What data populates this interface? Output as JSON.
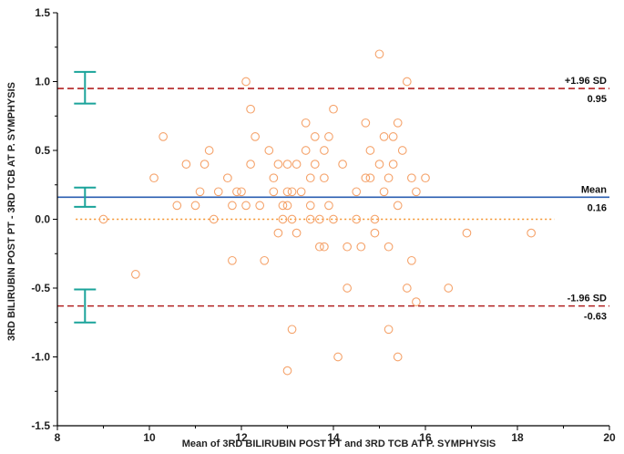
{
  "chart_data": {
    "type": "scatter",
    "title": "",
    "xlabel": "Mean of 3RD BILIRUBIN POST PT and 3RD TCB AT P. SYMPHYSIS",
    "ylabel": "3RD BILIRUBIN POST PT - 3RD TCB AT P. SYMPHYSIS",
    "xlim": [
      8,
      20
    ],
    "ylim": [
      -1.5,
      1.5
    ],
    "x_ticks": [
      "8",
      "10",
      "12",
      "14",
      "16",
      "18",
      "20"
    ],
    "y_ticks": [
      "1.5",
      "1.0",
      "0.5",
      "0.0",
      "-0.5",
      "-1.0",
      "-1.5"
    ],
    "grid": false,
    "points": [
      [
        9.0,
        0.0
      ],
      [
        9.7,
        -0.4
      ],
      [
        10.1,
        0.3
      ],
      [
        10.3,
        0.6
      ],
      [
        10.6,
        0.1
      ],
      [
        10.8,
        0.4
      ],
      [
        11.0,
        0.1
      ],
      [
        11.1,
        0.2
      ],
      [
        11.2,
        0.4
      ],
      [
        11.3,
        0.5
      ],
      [
        11.4,
        0.0
      ],
      [
        11.5,
        0.2
      ],
      [
        11.7,
        0.3
      ],
      [
        11.8,
        0.1
      ],
      [
        11.8,
        -0.3
      ],
      [
        11.9,
        0.2
      ],
      [
        12.0,
        0.2
      ],
      [
        12.1,
        0.1
      ],
      [
        12.1,
        1.0
      ],
      [
        12.2,
        0.8
      ],
      [
        12.2,
        0.4
      ],
      [
        12.3,
        0.6
      ],
      [
        12.4,
        0.1
      ],
      [
        12.5,
        -0.3
      ],
      [
        12.6,
        0.5
      ],
      [
        12.7,
        0.2
      ],
      [
        12.7,
        0.3
      ],
      [
        12.8,
        0.4
      ],
      [
        12.8,
        -0.1
      ],
      [
        12.9,
        0.0
      ],
      [
        12.9,
        0.1
      ],
      [
        13.0,
        0.4
      ],
      [
        13.0,
        0.2
      ],
      [
        13.0,
        0.1
      ],
      [
        13.0,
        -1.1
      ],
      [
        13.1,
        0.0
      ],
      [
        13.1,
        0.2
      ],
      [
        13.1,
        -0.8
      ],
      [
        13.2,
        0.4
      ],
      [
        13.2,
        -0.1
      ],
      [
        13.3,
        0.2
      ],
      [
        13.4,
        0.5
      ],
      [
        13.4,
        0.7
      ],
      [
        13.5,
        0.3
      ],
      [
        13.5,
        0.1
      ],
      [
        13.5,
        0.0
      ],
      [
        13.6,
        0.4
      ],
      [
        13.6,
        0.6
      ],
      [
        13.7,
        0.0
      ],
      [
        13.7,
        -0.2
      ],
      [
        13.8,
        0.3
      ],
      [
        13.8,
        0.5
      ],
      [
        13.8,
        -0.2
      ],
      [
        13.9,
        0.1
      ],
      [
        13.9,
        0.6
      ],
      [
        14.0,
        0.8
      ],
      [
        14.0,
        0.0
      ],
      [
        14.1,
        -1.0
      ],
      [
        14.2,
        0.4
      ],
      [
        14.3,
        -0.2
      ],
      [
        14.3,
        -0.5
      ],
      [
        14.5,
        0.0
      ],
      [
        14.5,
        0.2
      ],
      [
        14.6,
        -0.2
      ],
      [
        14.7,
        0.3
      ],
      [
        14.7,
        0.7
      ],
      [
        14.8,
        0.5
      ],
      [
        14.8,
        0.3
      ],
      [
        14.9,
        0.0
      ],
      [
        14.9,
        -0.1
      ],
      [
        15.0,
        0.4
      ],
      [
        15.0,
        1.2
      ],
      [
        15.1,
        0.2
      ],
      [
        15.1,
        0.6
      ],
      [
        15.2,
        0.3
      ],
      [
        15.2,
        -0.2
      ],
      [
        15.2,
        -0.8
      ],
      [
        15.3,
        0.6
      ],
      [
        15.3,
        0.4
      ],
      [
        15.4,
        0.1
      ],
      [
        15.4,
        0.7
      ],
      [
        15.4,
        -1.0
      ],
      [
        15.5,
        0.5
      ],
      [
        15.6,
        1.0
      ],
      [
        15.6,
        -0.5
      ],
      [
        15.7,
        0.3
      ],
      [
        15.7,
        -0.3
      ],
      [
        15.8,
        0.2
      ],
      [
        15.8,
        -0.6
      ],
      [
        16.0,
        0.3
      ],
      [
        16.5,
        -0.5
      ],
      [
        16.9,
        -0.1
      ],
      [
        18.3,
        -0.1
      ]
    ],
    "reference_lines": [
      {
        "label_top": "+1.96 SD",
        "label_bottom": "0.95",
        "value": 0.95,
        "color": "#b22222",
        "style": "dashed"
      },
      {
        "label_top": "Mean",
        "label_bottom": "0.16",
        "value": 0.16,
        "color": "#2a5db0",
        "style": "solid"
      },
      {
        "label_top": "-1.96 SD",
        "label_bottom": "-0.63",
        "value": -0.63,
        "color": "#b22222",
        "style": "dashed"
      }
    ],
    "zero_line": {
      "value": 0.0,
      "color": "#f5922c",
      "style": "dotted",
      "x_end": 18.8
    },
    "confidence_intervals": [
      {
        "x": 8.6,
        "low": 0.84,
        "high": 1.07
      },
      {
        "x": 8.6,
        "low": 0.09,
        "high": 0.23
      },
      {
        "x": 8.6,
        "low": -0.75,
        "high": -0.51
      }
    ],
    "colors": {
      "points": "#f5a36b",
      "ci": "#1aa39a",
      "axis": "#000000"
    }
  }
}
